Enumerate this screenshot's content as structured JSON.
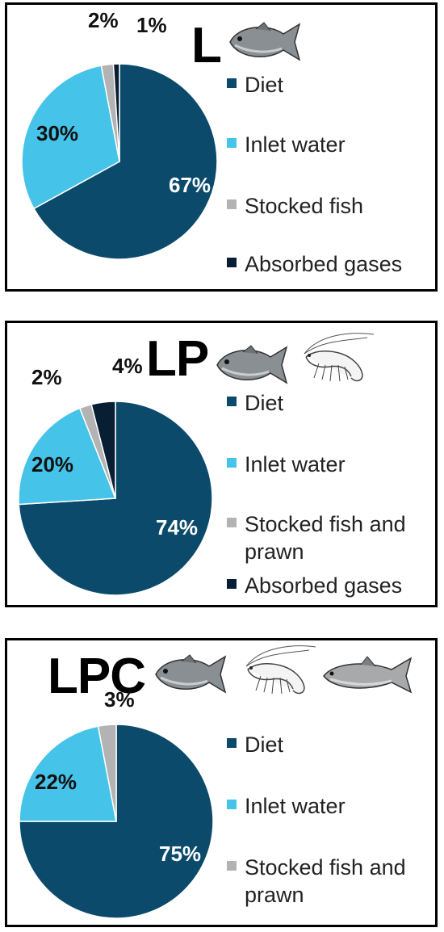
{
  "colors": {
    "diet": "#0b4a6b",
    "inlet": "#45c3e8",
    "stocked": "#b3b3b3",
    "gases": "#071e33"
  },
  "chart_data": [
    {
      "type": "pie",
      "title": "L",
      "icons": [
        "fish-icon"
      ],
      "slices": [
        {
          "label": "Diet",
          "value": 67,
          "display": "67%",
          "color": "#0b4a6b"
        },
        {
          "label": "Inlet water",
          "value": 30,
          "display": "30%",
          "color": "#45c3e8"
        },
        {
          "label": "Stocked fish",
          "value": 2,
          "display": "2%",
          "color": "#b3b3b3"
        },
        {
          "label": "Absorbed gases",
          "value": 1,
          "display": "1%",
          "color": "#071e33"
        }
      ],
      "legend": [
        "Diet",
        "Inlet water",
        "Stocked fish",
        "Absorbed gases"
      ],
      "legend_position": "right"
    },
    {
      "type": "pie",
      "title": "LP",
      "icons": [
        "fish-icon",
        "prawn-icon"
      ],
      "slices": [
        {
          "label": "Diet",
          "value": 74,
          "display": "74%",
          "color": "#0b4a6b"
        },
        {
          "label": "Inlet water",
          "value": 20,
          "display": "20%",
          "color": "#45c3e8"
        },
        {
          "label": "Stocked fish and prawn",
          "value": 2,
          "display": "2%",
          "color": "#b3b3b3"
        },
        {
          "label": "Absorbed gases",
          "value": 4,
          "display": "4%",
          "color": "#071e33"
        }
      ],
      "legend": [
        "Diet",
        "Inlet water",
        "Stocked fish and prawn",
        "Absorbed gases"
      ],
      "legend_position": "right"
    },
    {
      "type": "pie",
      "title": "LPC",
      "icons": [
        "fish-icon",
        "prawn-icon",
        "carp-icon"
      ],
      "slices": [
        {
          "label": "Diet",
          "value": 75,
          "display": "75%",
          "color": "#0b4a6b"
        },
        {
          "label": "Inlet water",
          "value": 22,
          "display": "22%",
          "color": "#45c3e8"
        },
        {
          "label": "Stocked fish and prawn",
          "value": 3,
          "display": "3%",
          "color": "#b3b3b3"
        }
      ],
      "legend": [
        "Diet",
        "Inlet water",
        "Stocked fish and prawn"
      ],
      "legend_position": "right"
    }
  ]
}
